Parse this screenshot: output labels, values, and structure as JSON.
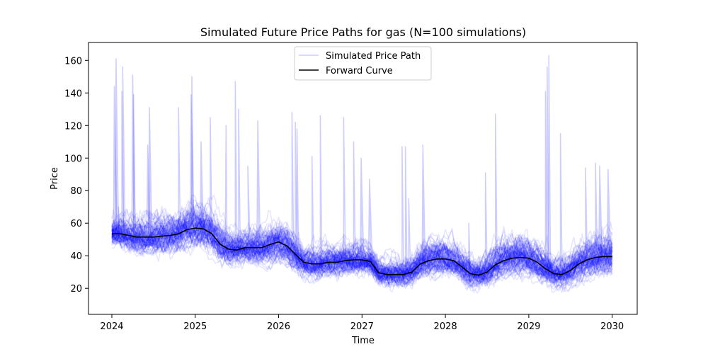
{
  "chart_data": {
    "type": "line",
    "title": "Simulated Future Price Paths for gas (N=100 simulations)",
    "xlabel": "Time",
    "ylabel": "Price",
    "xlim": [
      2023.72,
      2030.3
    ],
    "ylim": [
      4,
      171
    ],
    "x_ticks": [
      2024,
      2025,
      2026,
      2027,
      2028,
      2029,
      2030
    ],
    "x_tick_labels": [
      "2024",
      "2025",
      "2026",
      "2027",
      "2028",
      "2029",
      "2030"
    ],
    "y_ticks": [
      20,
      40,
      60,
      80,
      100,
      120,
      140,
      160
    ],
    "y_tick_labels": [
      "20",
      "40",
      "60",
      "80",
      "100",
      "120",
      "140",
      "160"
    ],
    "grid": false,
    "legend_position": "upper center",
    "colors": {
      "simulated": "#0000ff",
      "forward": "#000000"
    },
    "n_simulations": 100,
    "series": [
      {
        "name": "Forward Curve",
        "x": [
          2024.0,
          2024.1,
          2024.2,
          2024.3,
          2024.4,
          2024.5,
          2024.6,
          2024.7,
          2024.8,
          2024.9,
          2025.0,
          2025.1,
          2025.2,
          2025.3,
          2025.4,
          2025.5,
          2025.6,
          2025.7,
          2025.8,
          2025.9,
          2026.0,
          2026.1,
          2026.2,
          2026.3,
          2026.4,
          2026.5,
          2026.6,
          2026.7,
          2026.8,
          2026.9,
          2027.0,
          2027.1,
          2027.2,
          2027.3,
          2027.4,
          2027.5,
          2027.6,
          2027.7,
          2027.8,
          2027.9,
          2028.0,
          2028.1,
          2028.2,
          2028.3,
          2028.4,
          2028.5,
          2028.6,
          2028.7,
          2028.8,
          2028.9,
          2029.0,
          2029.1,
          2029.2,
          2029.3,
          2029.4,
          2029.5,
          2029.6,
          2029.7,
          2029.8,
          2029.9,
          2030.0
        ],
        "values": [
          53.5,
          53.5,
          52.5,
          51.5,
          51.5,
          51.5,
          52,
          52.5,
          53.5,
          56,
          57,
          56.5,
          53.5,
          47,
          44,
          43.5,
          45,
          45,
          45,
          47,
          48.5,
          46,
          41,
          36,
          35,
          35,
          36,
          36,
          37,
          37.5,
          37.5,
          36.5,
          29.5,
          28.5,
          28.5,
          28.5,
          30,
          35,
          37,
          38,
          38,
          37,
          33,
          29,
          28,
          30,
          34.5,
          37,
          38.5,
          39,
          38.5,
          36,
          32,
          29,
          28.5,
          31,
          35,
          37.5,
          39,
          39.5,
          39.5
        ]
      },
      {
        "name": "Simulated Price Path",
        "spikes": [
          {
            "x": 2024.03,
            "y": 144
          },
          {
            "x": 2024.05,
            "y": 161
          },
          {
            "x": 2024.08,
            "y": 70
          },
          {
            "x": 2024.12,
            "y": 141
          },
          {
            "x": 2024.13,
            "y": 156
          },
          {
            "x": 2024.25,
            "y": 151
          },
          {
            "x": 2024.26,
            "y": 139
          },
          {
            "x": 2024.43,
            "y": 108
          },
          {
            "x": 2024.45,
            "y": 131
          },
          {
            "x": 2024.8,
            "y": 131
          },
          {
            "x": 2024.95,
            "y": 139
          },
          {
            "x": 2024.96,
            "y": 150
          },
          {
            "x": 2025.07,
            "y": 110
          },
          {
            "x": 2025.18,
            "y": 125
          },
          {
            "x": 2025.37,
            "y": 120
          },
          {
            "x": 2025.48,
            "y": 147
          },
          {
            "x": 2025.52,
            "y": 130
          },
          {
            "x": 2025.63,
            "y": 95
          },
          {
            "x": 2025.75,
            "y": 123
          },
          {
            "x": 2026.16,
            "y": 128
          },
          {
            "x": 2026.2,
            "y": 122
          },
          {
            "x": 2026.22,
            "y": 118
          },
          {
            "x": 2026.4,
            "y": 101
          },
          {
            "x": 2026.5,
            "y": 126
          },
          {
            "x": 2026.78,
            "y": 125
          },
          {
            "x": 2026.9,
            "y": 110
          },
          {
            "x": 2026.99,
            "y": 100
          },
          {
            "x": 2027.09,
            "y": 87
          },
          {
            "x": 2027.48,
            "y": 107
          },
          {
            "x": 2027.52,
            "y": 107
          },
          {
            "x": 2027.56,
            "y": 75
          },
          {
            "x": 2027.73,
            "y": 108
          },
          {
            "x": 2028.28,
            "y": 60
          },
          {
            "x": 2028.48,
            "y": 91
          },
          {
            "x": 2028.6,
            "y": 127
          },
          {
            "x": 2029.2,
            "y": 141
          },
          {
            "x": 2029.22,
            "y": 156
          },
          {
            "x": 2029.24,
            "y": 163
          },
          {
            "x": 2029.38,
            "y": 115
          },
          {
            "x": 2029.68,
            "y": 94
          },
          {
            "x": 2029.8,
            "y": 97
          },
          {
            "x": 2029.85,
            "y": 95
          },
          {
            "x": 2029.95,
            "y": 93
          }
        ]
      }
    ]
  }
}
